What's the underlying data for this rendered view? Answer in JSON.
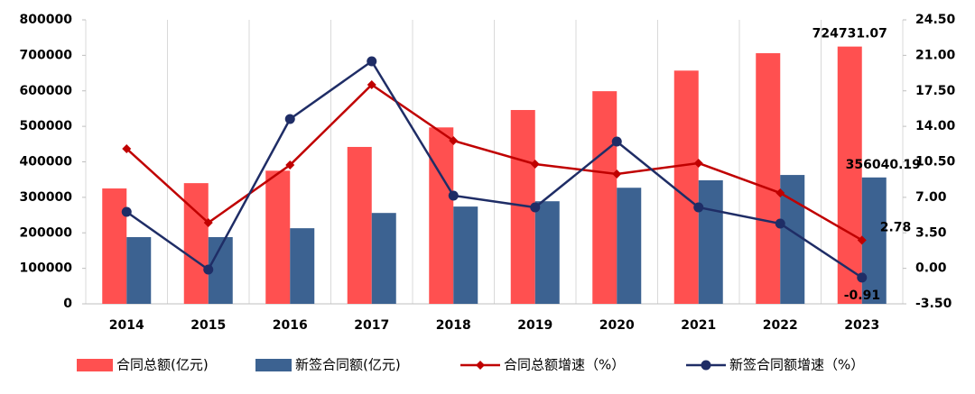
{
  "chart_data": {
    "type": "bar-line",
    "categories": [
      "2014",
      "2015",
      "2016",
      "2017",
      "2018",
      "2019",
      "2020",
      "2021",
      "2022",
      "2023"
    ],
    "series": [
      {
        "name": "合同总额(亿元)",
        "type": "bar",
        "color": "#ff5050",
        "values": [
          325000,
          340000,
          375000,
          442000,
          497000,
          546000,
          599000,
          657000,
          706000,
          724731.07
        ]
      },
      {
        "name": "新签合同额(亿元)",
        "type": "bar",
        "color": "#3c6291",
        "values": [
          188000,
          188000,
          213000,
          256000,
          274000,
          289000,
          327000,
          348000,
          363000,
          356040.19
        ]
      },
      {
        "name": "合同总额增速（%）",
        "type": "line",
        "axis": "y2",
        "marker": "diamond",
        "color": "#c00000",
        "values": [
          11.79,
          4.5,
          10.19,
          18.1,
          12.59,
          10.28,
          9.3,
          10.37,
          7.43,
          2.78
        ]
      },
      {
        "name": "新签合同额增速（%）",
        "type": "line",
        "axis": "y2",
        "marker": "circle",
        "color": "#1f2d66",
        "values": [
          5.57,
          -0.12,
          14.72,
          20.41,
          7.17,
          6.01,
          12.5,
          6.01,
          4.41,
          -0.91
        ]
      }
    ],
    "ylim": [
      0,
      800000
    ],
    "yticks": [
      0,
      100000,
      200000,
      300000,
      400000,
      500000,
      600000,
      700000,
      800000
    ],
    "y2lim": [
      -3.5,
      24.5
    ],
    "y2ticks": [
      {
        "value": -3.5,
        "label": "-3.50"
      },
      {
        "value": 0,
        "label": "0.00"
      },
      {
        "value": 3.5,
        "label": "3.50"
      },
      {
        "value": 7,
        "label": "7.00"
      },
      {
        "value": 10.5,
        "label": "10.50"
      },
      {
        "value": 14,
        "label": "14.00"
      },
      {
        "value": 17.5,
        "label": "17.50"
      },
      {
        "value": 21,
        "label": "21.00"
      },
      {
        "value": 24.5,
        "label": "24.50"
      }
    ],
    "legend": "bottom"
  }
}
